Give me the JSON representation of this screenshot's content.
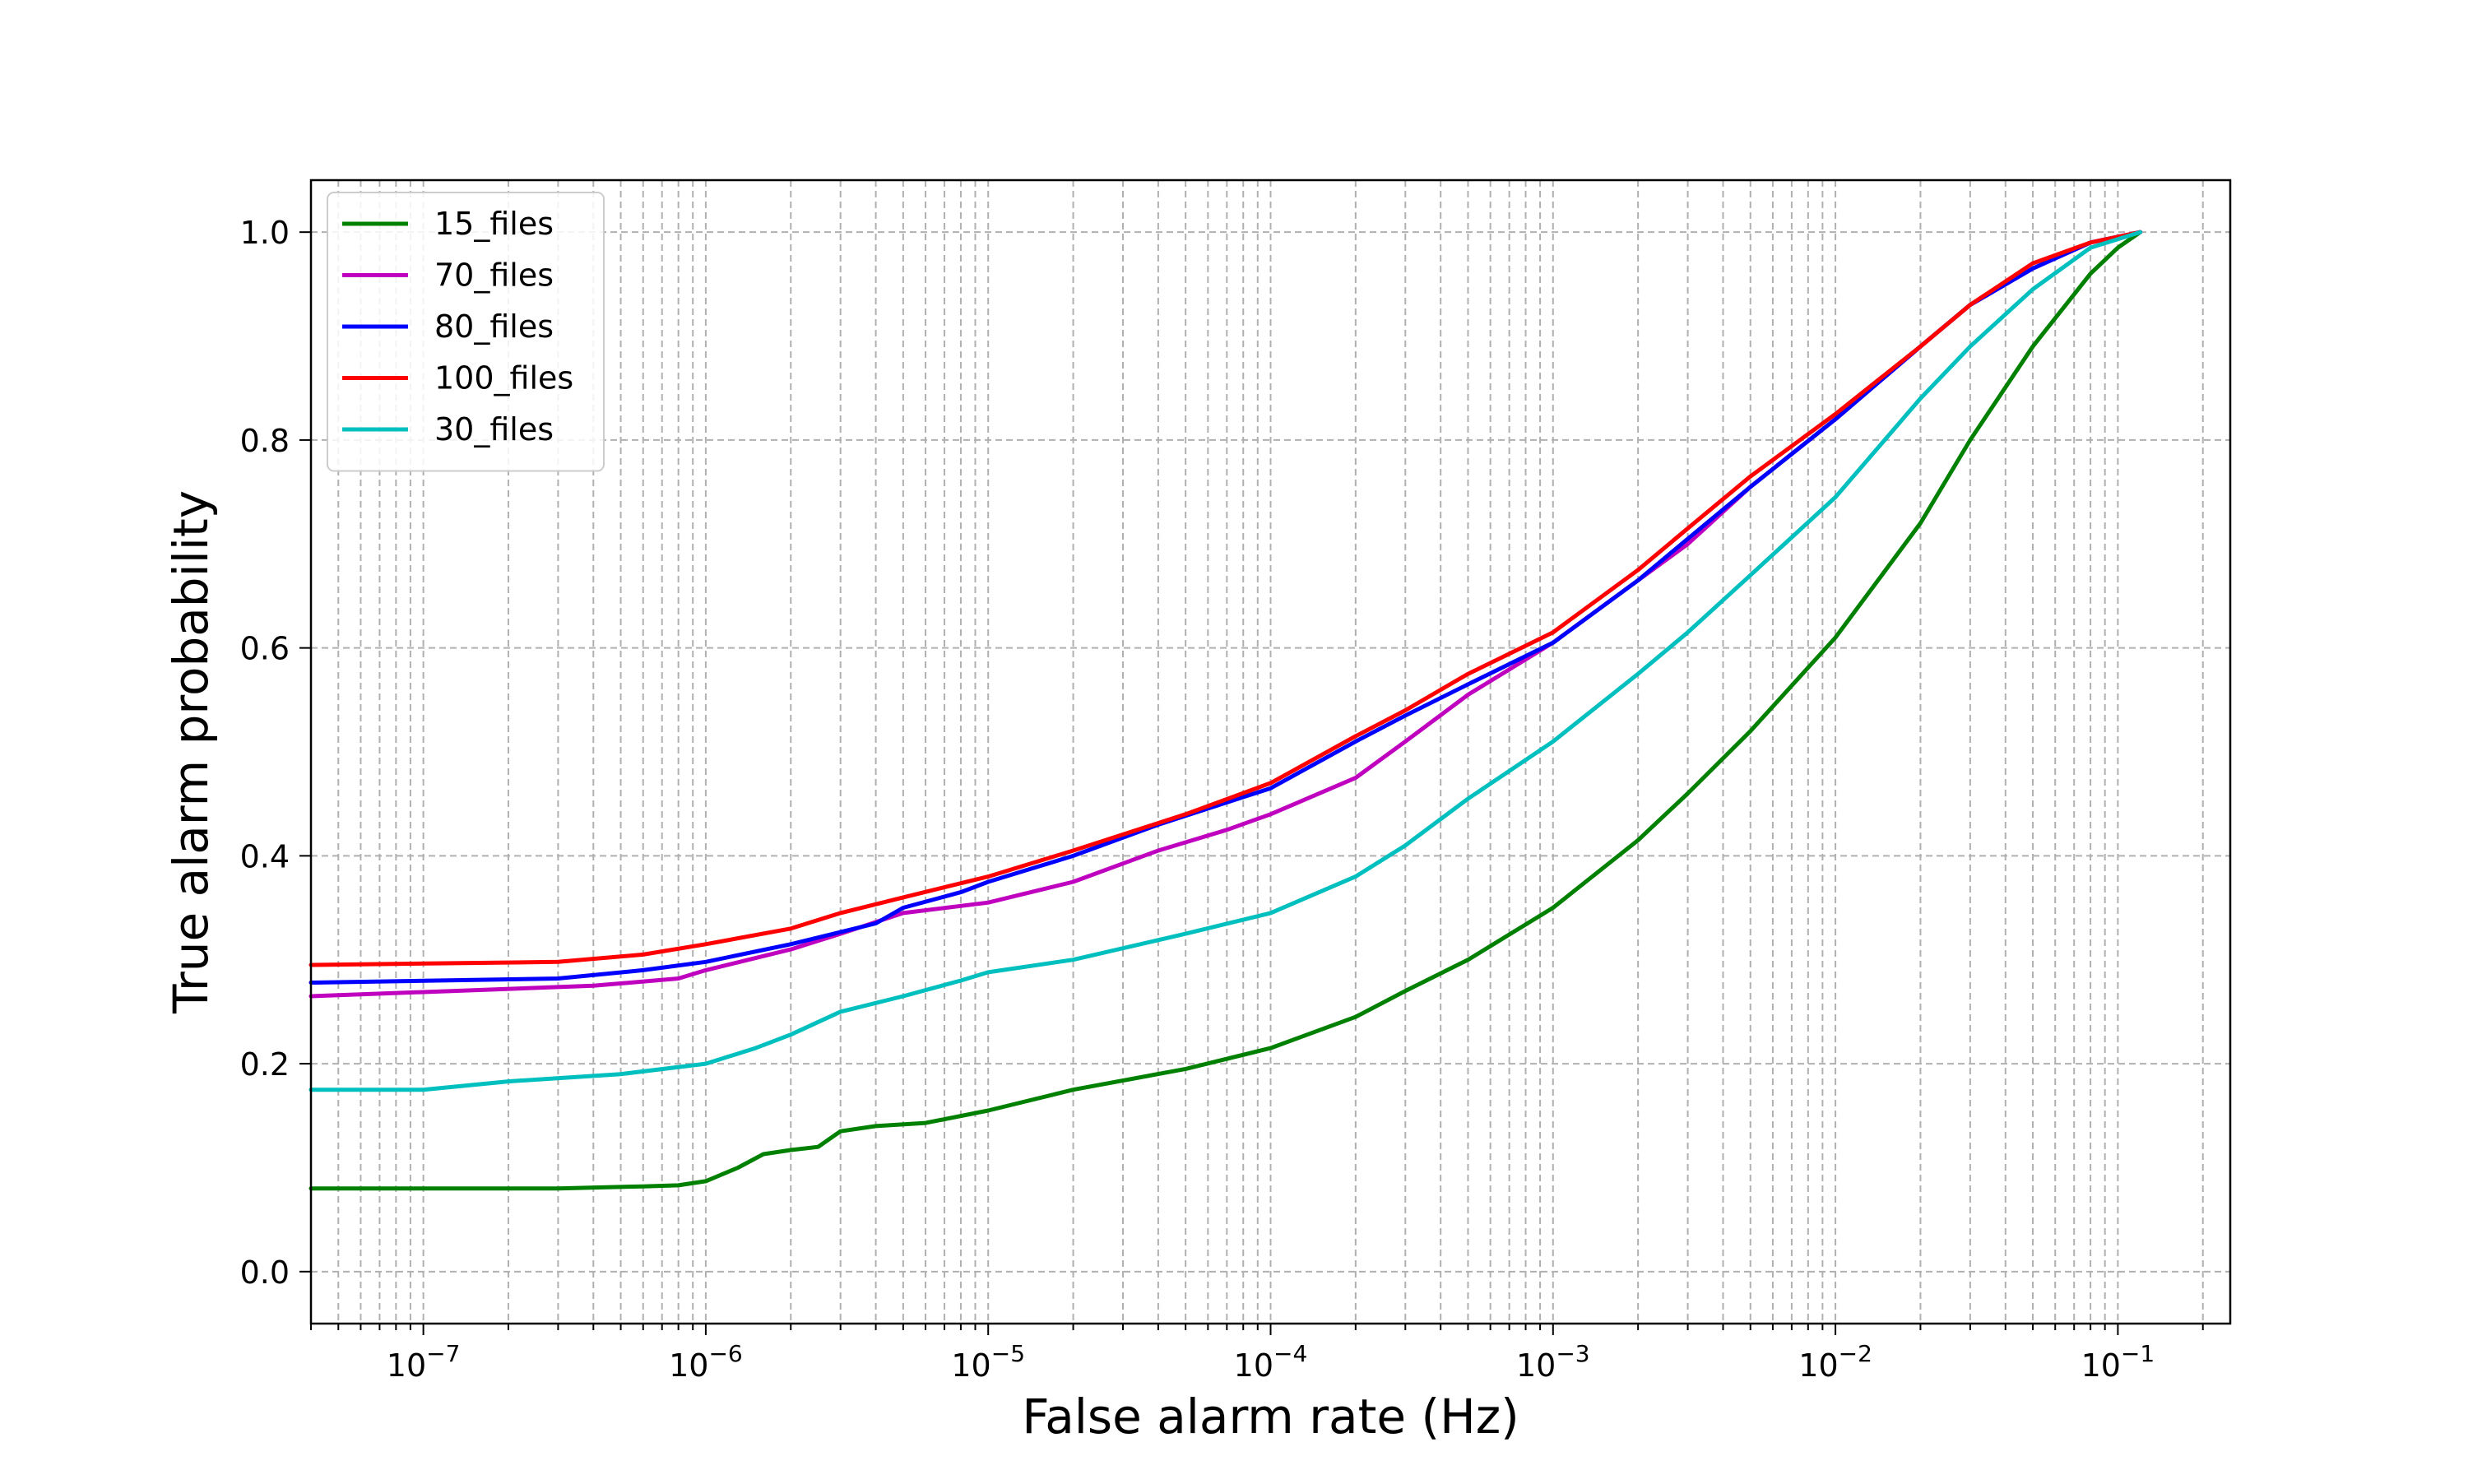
{
  "chart_data": {
    "type": "line",
    "title": "",
    "xlabel": "False alarm rate (Hz)",
    "ylabel": "True alarm probability",
    "xscale": "log",
    "xlim": [
      4e-08,
      0.25
    ],
    "ylim": [
      -0.05,
      1.05
    ],
    "x_ticks": [
      1e-07,
      1e-06,
      1e-05,
      0.0001,
      0.001,
      0.01,
      0.1
    ],
    "x_tick_labels": [
      {
        "base": "10",
        "exp": "−7"
      },
      {
        "base": "10",
        "exp": "−6"
      },
      {
        "base": "10",
        "exp": "−5"
      },
      {
        "base": "10",
        "exp": "−4"
      },
      {
        "base": "10",
        "exp": "−3"
      },
      {
        "base": "10",
        "exp": "−2"
      },
      {
        "base": "10",
        "exp": "−1"
      }
    ],
    "y_ticks": [
      0.0,
      0.2,
      0.4,
      0.6,
      0.8,
      1.0
    ],
    "y_tick_labels": [
      "0.0",
      "0.2",
      "0.4",
      "0.6",
      "0.8",
      "1.0"
    ],
    "grid": true,
    "grid_style": "dashed",
    "legend_position": "top-left",
    "series": [
      {
        "name": "15_files",
        "color": "#008000",
        "points": [
          [
            4e-08,
            0.08
          ],
          [
            3e-07,
            0.08
          ],
          [
            6e-07,
            0.082
          ],
          [
            8e-07,
            0.083
          ],
          [
            1e-06,
            0.087
          ],
          [
            1.3e-06,
            0.1
          ],
          [
            1.6e-06,
            0.113
          ],
          [
            2e-06,
            0.117
          ],
          [
            2.5e-06,
            0.12
          ],
          [
            3e-06,
            0.135
          ],
          [
            4e-06,
            0.14
          ],
          [
            6e-06,
            0.143
          ],
          [
            1e-05,
            0.155
          ],
          [
            2e-05,
            0.175
          ],
          [
            5e-05,
            0.195
          ],
          [
            0.0001,
            0.215
          ],
          [
            0.0002,
            0.245
          ],
          [
            0.0003,
            0.27
          ],
          [
            0.0005,
            0.3
          ],
          [
            0.001,
            0.35
          ],
          [
            0.002,
            0.415
          ],
          [
            0.003,
            0.46
          ],
          [
            0.005,
            0.52
          ],
          [
            0.01,
            0.61
          ],
          [
            0.02,
            0.72
          ],
          [
            0.03,
            0.8
          ],
          [
            0.05,
            0.89
          ],
          [
            0.08,
            0.96
          ],
          [
            0.1,
            0.985
          ],
          [
            0.12,
            1.0
          ]
        ]
      },
      {
        "name": "70_files",
        "color": "#bf00bf",
        "points": [
          [
            4e-08,
            0.265
          ],
          [
            4e-07,
            0.275
          ],
          [
            8e-07,
            0.282
          ],
          [
            1e-06,
            0.29
          ],
          [
            2e-06,
            0.31
          ],
          [
            3e-06,
            0.325
          ],
          [
            5e-06,
            0.345
          ],
          [
            1e-05,
            0.355
          ],
          [
            2e-05,
            0.375
          ],
          [
            4e-05,
            0.405
          ],
          [
            7e-05,
            0.425
          ],
          [
            0.0001,
            0.44
          ],
          [
            0.0002,
            0.475
          ],
          [
            0.0003,
            0.51
          ],
          [
            0.0005,
            0.555
          ],
          [
            0.001,
            0.605
          ],
          [
            0.002,
            0.665
          ],
          [
            0.003,
            0.7
          ],
          [
            0.005,
            0.755
          ],
          [
            0.01,
            0.82
          ],
          [
            0.02,
            0.89
          ],
          [
            0.03,
            0.93
          ],
          [
            0.05,
            0.965
          ],
          [
            0.08,
            0.99
          ],
          [
            0.12,
            1.0
          ]
        ]
      },
      {
        "name": "80_files",
        "color": "#0000ff",
        "points": [
          [
            4e-08,
            0.278
          ],
          [
            3e-07,
            0.282
          ],
          [
            6e-07,
            0.29
          ],
          [
            1e-06,
            0.298
          ],
          [
            2e-06,
            0.315
          ],
          [
            4e-06,
            0.335
          ],
          [
            5e-06,
            0.35
          ],
          [
            8e-06,
            0.365
          ],
          [
            1e-05,
            0.375
          ],
          [
            2e-05,
            0.4
          ],
          [
            4e-05,
            0.43
          ],
          [
            0.0001,
            0.465
          ],
          [
            0.0002,
            0.51
          ],
          [
            0.0003,
            0.535
          ],
          [
            0.0005,
            0.565
          ],
          [
            0.001,
            0.605
          ],
          [
            0.002,
            0.665
          ],
          [
            0.003,
            0.705
          ],
          [
            0.005,
            0.755
          ],
          [
            0.01,
            0.82
          ],
          [
            0.02,
            0.89
          ],
          [
            0.03,
            0.93
          ],
          [
            0.05,
            0.965
          ],
          [
            0.08,
            0.99
          ],
          [
            0.12,
            1.0
          ]
        ]
      },
      {
        "name": "100_files",
        "color": "#ff0000",
        "points": [
          [
            4e-08,
            0.295
          ],
          [
            3e-07,
            0.298
          ],
          [
            6e-07,
            0.305
          ],
          [
            1e-06,
            0.315
          ],
          [
            2e-06,
            0.33
          ],
          [
            3e-06,
            0.345
          ],
          [
            5e-06,
            0.36
          ],
          [
            1e-05,
            0.38
          ],
          [
            2e-05,
            0.405
          ],
          [
            5e-05,
            0.44
          ],
          [
            0.0001,
            0.47
          ],
          [
            0.0002,
            0.515
          ],
          [
            0.0003,
            0.54
          ],
          [
            0.0005,
            0.575
          ],
          [
            0.001,
            0.615
          ],
          [
            0.002,
            0.675
          ],
          [
            0.003,
            0.715
          ],
          [
            0.005,
            0.765
          ],
          [
            0.01,
            0.825
          ],
          [
            0.02,
            0.89
          ],
          [
            0.03,
            0.93
          ],
          [
            0.05,
            0.97
          ],
          [
            0.08,
            0.99
          ],
          [
            0.12,
            1.0
          ]
        ]
      },
      {
        "name": "30_files",
        "color": "#00bfbf",
        "points": [
          [
            4e-08,
            0.175
          ],
          [
            1e-07,
            0.175
          ],
          [
            2e-07,
            0.183
          ],
          [
            5e-07,
            0.19
          ],
          [
            1e-06,
            0.2
          ],
          [
            1.5e-06,
            0.215
          ],
          [
            2e-06,
            0.228
          ],
          [
            3e-06,
            0.25
          ],
          [
            5e-06,
            0.265
          ],
          [
            8e-06,
            0.28
          ],
          [
            1e-05,
            0.288
          ],
          [
            2e-05,
            0.3
          ],
          [
            5e-05,
            0.325
          ],
          [
            0.0001,
            0.345
          ],
          [
            0.0002,
            0.38
          ],
          [
            0.0003,
            0.41
          ],
          [
            0.0005,
            0.455
          ],
          [
            0.001,
            0.51
          ],
          [
            0.002,
            0.575
          ],
          [
            0.003,
            0.615
          ],
          [
            0.005,
            0.67
          ],
          [
            0.01,
            0.745
          ],
          [
            0.02,
            0.84
          ],
          [
            0.03,
            0.89
          ],
          [
            0.05,
            0.945
          ],
          [
            0.08,
            0.985
          ],
          [
            0.12,
            1.0
          ]
        ]
      }
    ]
  }
}
